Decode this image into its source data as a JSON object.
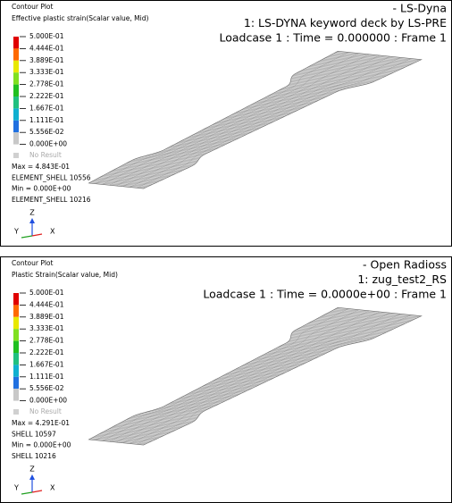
{
  "panels": [
    {
      "contour_title": "Contour Plot",
      "field": "Effective plastic strain(Scalar value, Mid)",
      "legend_labels": [
        "5.000E-01",
        "4.444E-01",
        "3.889E-01",
        "3.333E-01",
        "2.778E-01",
        "2.222E-01",
        "1.667E-01",
        "1.111E-01",
        "5.556E-02",
        "0.000E+00"
      ],
      "legend_colors": [
        "#e00000",
        "#ff6a00",
        "#e8e800",
        "#80e020",
        "#20c020",
        "#20c080",
        "#10b0d0",
        "#2070e0",
        "#c8c8c8"
      ],
      "no_result": "No Result",
      "info": [
        "Max = 4.843E-01",
        "ELEMENT_SHELL 10556",
        "Min = 0.000E+00",
        "ELEMENT_SHELL 10216"
      ],
      "header": [
        "- LS-Dyna",
        "1: LS-DYNA keyword deck by LS-PRE",
        "Loadcase 1 : Time = 0.000000 : Frame 1"
      ],
      "axes": {
        "z": "Z",
        "y": "Y",
        "x": "X"
      }
    },
    {
      "contour_title": "Contour Plot",
      "field": "Plastic Strain(Scalar value, Mid)",
      "legend_labels": [
        "5.000E-01",
        "4.444E-01",
        "3.889E-01",
        "3.333E-01",
        "2.778E-01",
        "2.222E-01",
        "1.667E-01",
        "1.111E-01",
        "5.556E-02",
        "0.000E+00"
      ],
      "legend_colors": [
        "#e00000",
        "#ff6a00",
        "#e8e800",
        "#80e020",
        "#20c020",
        "#20c080",
        "#10b0d0",
        "#2070e0",
        "#c8c8c8"
      ],
      "no_result": "No Result",
      "info": [
        "Max = 4.291E-01",
        "SHELL 10597",
        "Min = 0.000E+00",
        "SHELL 10216"
      ],
      "header": [
        "- Open Radioss",
        "1: zug_test2_RS",
        "Loadcase 1 : Time = 0.0000e+00 : Frame 1"
      ],
      "axes": {
        "z": "Z",
        "y": "Y",
        "x": "X"
      }
    }
  ]
}
